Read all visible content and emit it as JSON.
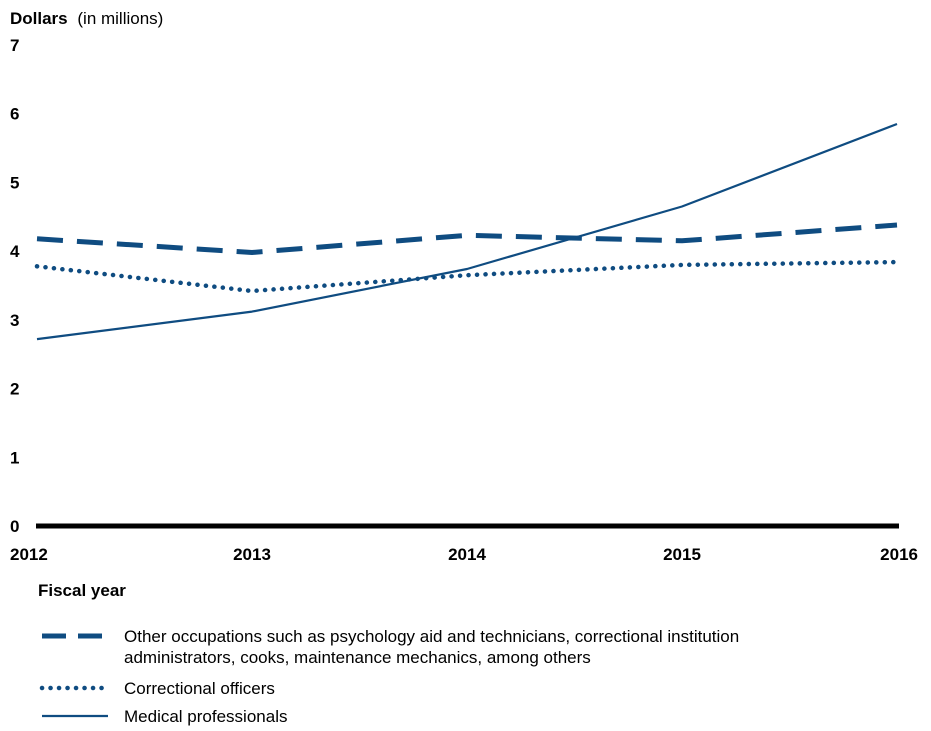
{
  "chart_data": {
    "type": "line",
    "ylabel_bold": "Dollars",
    "ylabel_rest": "(in millions)",
    "xlabel": "Fiscal year",
    "x": [
      "2012",
      "2013",
      "2014",
      "2015",
      "2016"
    ],
    "yticks": [
      "0",
      "1",
      "2",
      "3",
      "4",
      "5",
      "6",
      "7"
    ],
    "ylim": [
      0,
      7
    ],
    "grid": false,
    "legend_position": "bottom",
    "series": [
      {
        "name": "Other occupations such as psychology aid and technicians, correctional institution administrators, cooks, maintenance mechanics, among others",
        "name_lines": [
          "Other occupations such as psychology aid and technicians, correctional institution",
          "administrators, cooks, maintenance mechanics, among others"
        ],
        "values": [
          4.18,
          3.98,
          4.23,
          4.15,
          4.38
        ],
        "style": "dashed",
        "color": "#0f4c81"
      },
      {
        "name": "Correctional officers",
        "name_lines": [
          "Correctional officers"
        ],
        "values": [
          3.78,
          3.42,
          3.65,
          3.8,
          3.84
        ],
        "style": "dotted",
        "color": "#0f4c81"
      },
      {
        "name": "Medical professionals",
        "name_lines": [
          "Medical professionals"
        ],
        "values": [
          2.72,
          3.12,
          3.74,
          4.65,
          5.85
        ],
        "style": "solid",
        "color": "#0f4c81"
      }
    ],
    "axis_color": "#000000"
  }
}
